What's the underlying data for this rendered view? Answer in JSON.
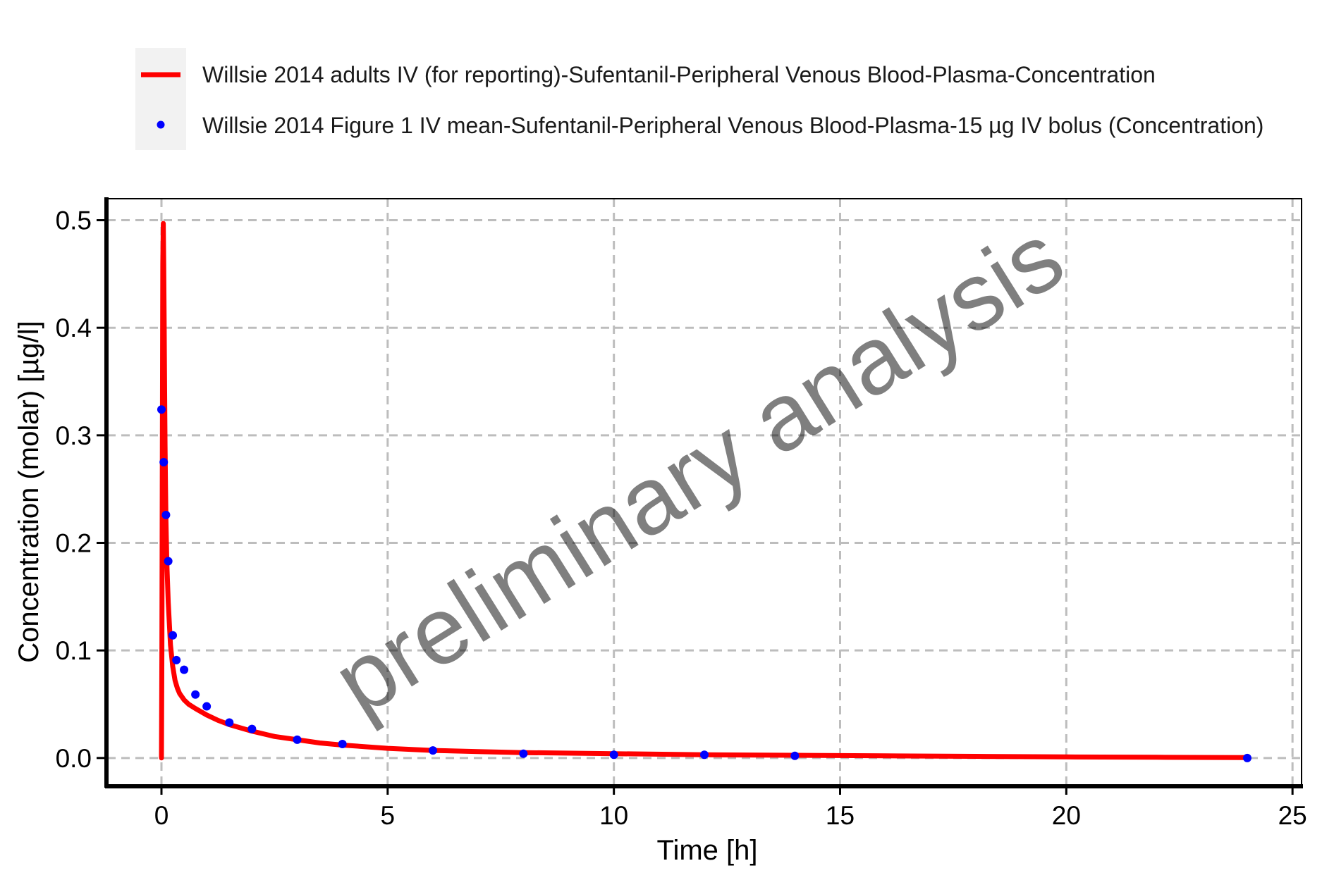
{
  "chart_data": {
    "type": "line",
    "title": "",
    "xlabel": "Time [h]",
    "ylabel": "Concentration (molar) [µg/l]",
    "xlim": [
      -1.2,
      25.2
    ],
    "ylim": [
      -0.025,
      0.52
    ],
    "x_ticks": [
      0,
      5,
      10,
      15,
      20,
      25
    ],
    "y_ticks": [
      0.0,
      0.1,
      0.2,
      0.3,
      0.4,
      0.5
    ],
    "x_tick_labels": [
      "0",
      "5",
      "10",
      "15",
      "20",
      "25"
    ],
    "y_tick_labels": [
      "0.0",
      "0.1",
      "0.2",
      "0.3",
      "0.4",
      "0.5"
    ],
    "grid": true,
    "legend_position": "top",
    "watermark": "preliminary analysis",
    "series": [
      {
        "name": "Willsie 2014 adults IV (for reporting)-Sufentanil-Peripheral Venous Blood-Plasma-Concentration",
        "kind": "line",
        "color": "#ff0000",
        "x": [
          0,
          0.01,
          0.02,
          0.03,
          0.04,
          0.05,
          0.06,
          0.07,
          0.08,
          0.09,
          0.1,
          0.12,
          0.15,
          0.18,
          0.2,
          0.25,
          0.3,
          0.35,
          0.4,
          0.5,
          0.6,
          0.75,
          1.0,
          1.25,
          1.5,
          2.0,
          2.5,
          3.0,
          3.5,
          4.0,
          5.0,
          6.0,
          7.0,
          8.0,
          10.0,
          12.0,
          14.0,
          16.0,
          18.0,
          20.0,
          22.0,
          24.0
        ],
        "y": [
          0.0,
          0.1,
          0.3,
          0.46,
          0.497,
          0.46,
          0.4,
          0.34,
          0.29,
          0.25,
          0.22,
          0.18,
          0.145,
          0.12,
          0.105,
          0.085,
          0.072,
          0.065,
          0.06,
          0.054,
          0.05,
          0.046,
          0.04,
          0.035,
          0.031,
          0.025,
          0.02,
          0.017,
          0.014,
          0.012,
          0.009,
          0.007,
          0.006,
          0.005,
          0.004,
          0.003,
          0.0025,
          0.002,
          0.0015,
          0.001,
          0.0007,
          0.0004
        ]
      },
      {
        "name": "Willsie 2014 Figure 1 IV mean-Sufentanil-Peripheral Venous Blood-Plasma-15 µg IV bolus (Concentration)",
        "kind": "scatter",
        "color": "#0000ff",
        "x": [
          0.0,
          0.05,
          0.1,
          0.15,
          0.25,
          0.33,
          0.5,
          0.75,
          1.0,
          1.5,
          2.0,
          3.0,
          4.0,
          6.0,
          8.0,
          10.0,
          12.0,
          14.0,
          24.0
        ],
        "y": [
          0.324,
          0.275,
          0.226,
          0.183,
          0.114,
          0.091,
          0.082,
          0.059,
          0.048,
          0.033,
          0.027,
          0.017,
          0.013,
          0.007,
          0.004,
          0.003,
          0.003,
          0.002,
          0.0
        ]
      }
    ]
  }
}
